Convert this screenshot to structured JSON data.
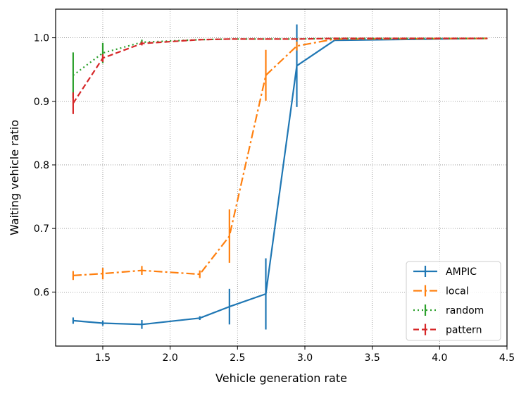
{
  "chart_data": {
    "type": "line",
    "title": "",
    "xlabel": "Vehicle generation rate",
    "ylabel": "Waiting vehicle ratio",
    "xlim": [
      1.15,
      4.5
    ],
    "ylim": [
      0.515,
      1.045
    ],
    "xticks": [
      1.5,
      2.0,
      2.5,
      3.0,
      3.5,
      4.0,
      4.5
    ],
    "xtick_labels": [
      "1.5",
      "2.0",
      "2.5",
      "3.0",
      "3.5",
      "4.0",
      "4.5"
    ],
    "yticks": [
      0.6,
      0.7,
      0.8,
      0.9,
      1.0
    ],
    "ytick_labels": [
      "0.6",
      "0.7",
      "0.8",
      "0.9",
      "1.0"
    ],
    "grid": true,
    "legend_position": "bottom-right",
    "series": [
      {
        "name": "AMPIC",
        "color": "#1f77b4",
        "dash": "",
        "x": [
          1.28,
          1.5,
          1.79,
          2.22,
          2.44,
          2.71,
          2.94,
          3.22,
          4.35
        ],
        "y": [
          0.555,
          0.551,
          0.549,
          0.559,
          0.577,
          0.597,
          0.956,
          0.996,
          0.999
        ],
        "err": [
          0.005,
          0.004,
          0.007,
          0.003,
          0.028,
          0.056,
          0.065,
          0.001,
          0.001
        ]
      },
      {
        "name": "local",
        "color": "#ff7f0e",
        "dash": "12,4,3,4",
        "x": [
          1.28,
          1.5,
          1.79,
          2.22,
          2.44,
          2.71,
          2.94,
          3.22,
          4.35
        ],
        "y": [
          0.626,
          0.629,
          0.634,
          0.628,
          0.688,
          0.941,
          0.987,
          0.998,
          0.999
        ],
        "err": [
          0.007,
          0.009,
          0.007,
          0.006,
          0.042,
          0.04,
          0.007,
          0.002,
          0.001
        ]
      },
      {
        "name": "random",
        "color": "#2ca02c",
        "dash": "2,4",
        "x": [
          1.28,
          1.5,
          1.79,
          2.22,
          2.44,
          2.71,
          2.94,
          3.22,
          4.35
        ],
        "y": [
          0.941,
          0.976,
          0.993,
          0.997,
          0.998,
          0.998,
          0.998,
          0.999,
          0.999
        ],
        "err": [
          0.036,
          0.016,
          0.004,
          0.001,
          0.001,
          0.001,
          0.001,
          0.001,
          0.001
        ]
      },
      {
        "name": "pattern",
        "color": "#d62728",
        "dash": "8,4",
        "x": [
          1.28,
          1.5,
          1.79,
          2.22,
          2.44,
          2.71,
          2.94,
          3.22,
          4.35
        ],
        "y": [
          0.897,
          0.968,
          0.991,
          0.997,
          0.998,
          0.998,
          0.998,
          0.999,
          0.999
        ],
        "err": [
          0.017,
          0.006,
          0.003,
          0.001,
          0.001,
          0.001,
          0.001,
          0.001,
          0.001
        ]
      }
    ]
  }
}
